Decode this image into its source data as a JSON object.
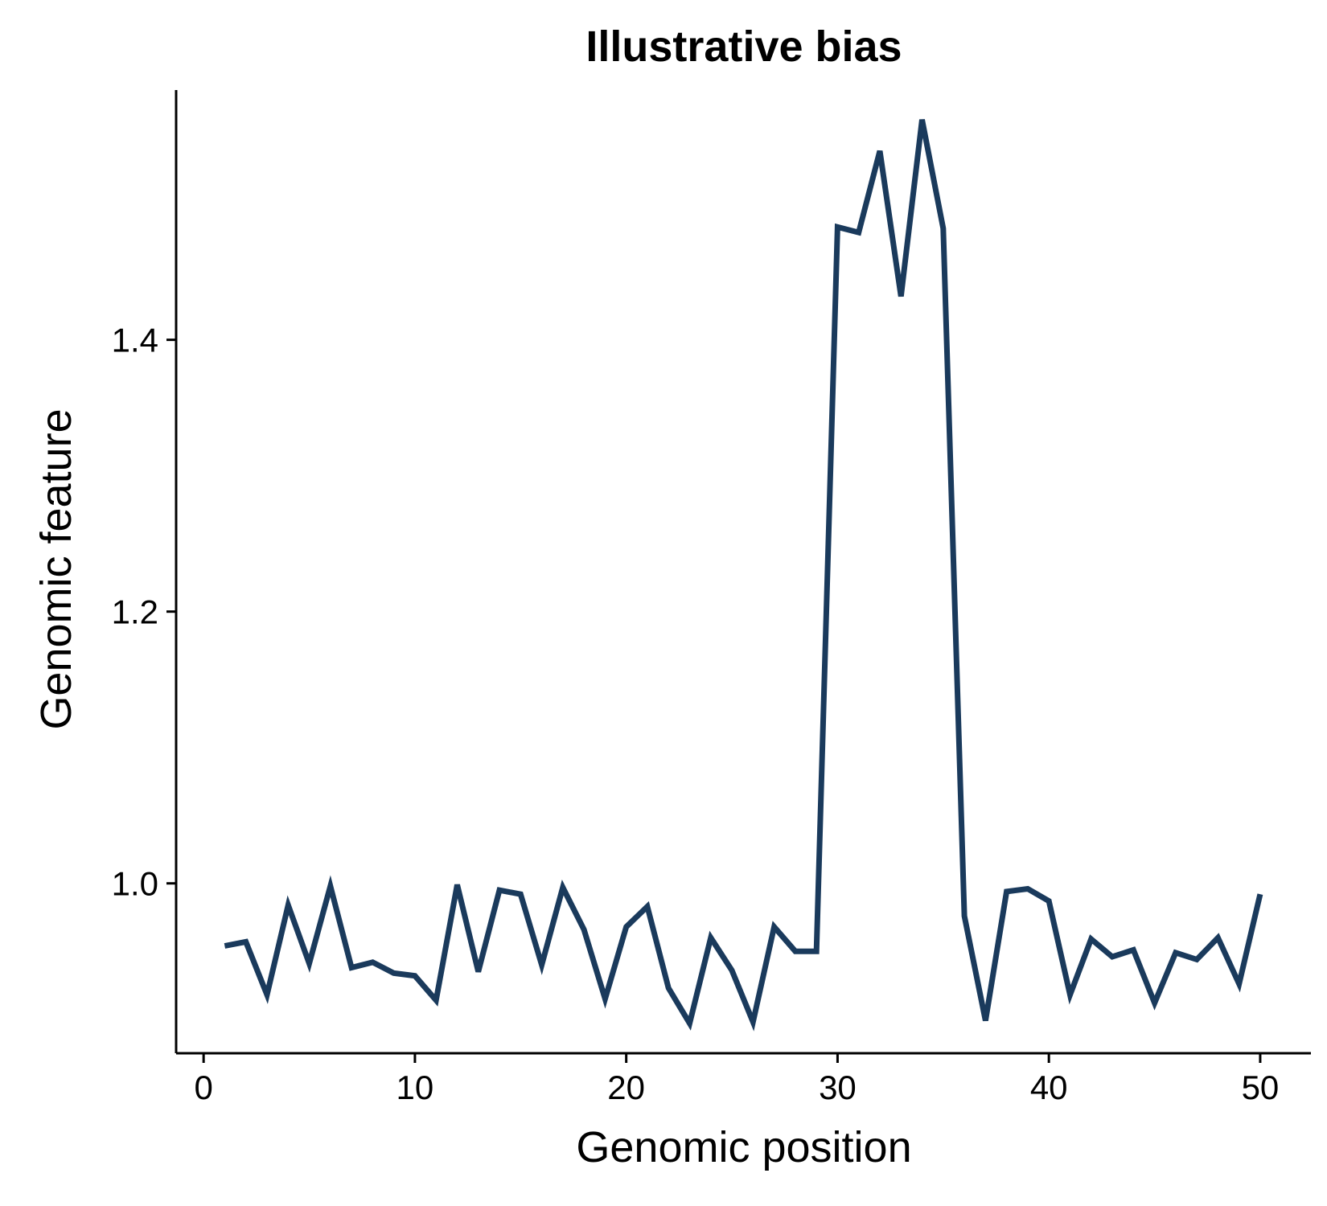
{
  "chart_data": {
    "type": "line",
    "title": "Illustrative bias",
    "xlabel": "Genomic position",
    "ylabel": "Genomic feature",
    "xlim": [
      -1.3,
      52.4
    ],
    "ylim": [
      0.875,
      1.5838
    ],
    "xticks": [
      0,
      10,
      20,
      30,
      40,
      50
    ],
    "yticks": [
      1.0,
      1.2,
      1.4
    ],
    "x_tick_labels": [
      "0",
      "10",
      "20",
      "30",
      "40",
      "50"
    ],
    "y_tick_labels": [
      "1.0",
      "1.2",
      "1.4"
    ],
    "grid": false,
    "legend": "none",
    "colors": {
      "line": "#1a3a5c",
      "axis": "#000000"
    },
    "series": [
      {
        "x": [
          1,
          2,
          3,
          4,
          5,
          6,
          7,
          8,
          9,
          10,
          11,
          12,
          13,
          14,
          15,
          16,
          17,
          18,
          19,
          20,
          21,
          22,
          23,
          24,
          25,
          26,
          27,
          28,
          29,
          30,
          31,
          32,
          33,
          34,
          35,
          36,
          37,
          38,
          39,
          40,
          41,
          42,
          43,
          44,
          45,
          46,
          47,
          48,
          49,
          50
        ],
        "values": [
          0.954,
          0.957,
          0.918,
          0.984,
          0.941,
          0.998,
          0.938,
          0.942,
          0.934,
          0.932,
          0.914,
          0.999,
          0.935,
          0.995,
          0.992,
          0.94,
          0.997,
          0.966,
          0.915,
          0.968,
          0.983,
          0.923,
          0.897,
          0.96,
          0.936,
          0.898,
          0.968,
          0.95,
          0.95,
          1.483,
          1.479,
          1.539,
          1.432,
          1.562,
          1.482,
          0.976,
          0.899,
          0.994,
          0.996,
          0.987,
          0.918,
          0.959,
          0.946,
          0.951,
          0.912,
          0.949,
          0.944,
          0.96,
          0.926,
          0.992
        ]
      }
    ]
  }
}
